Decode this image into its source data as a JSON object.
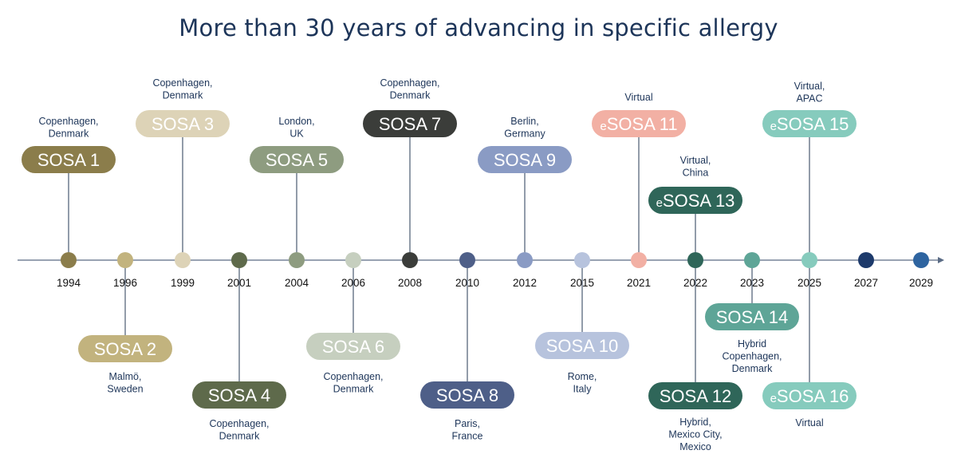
{
  "title": "More than 30 years of advancing in specific allergy",
  "timeline_items": [
    {
      "year": "1994",
      "label": "SOSA 1",
      "prefix": "",
      "location": [
        "Copenhagen,",
        "Denmark"
      ],
      "color": "#8b7d4b",
      "text_color": "#ffffff"
    },
    {
      "year": "1996",
      "label": "SOSA 2",
      "prefix": "",
      "location": [
        "Malmö,",
        "Sweden"
      ],
      "color": "#c2b37e",
      "text_color": "#ffffff"
    },
    {
      "year": "1999",
      "label": "SOSA 3",
      "prefix": "",
      "location": [
        "Copenhagen,",
        "Denmark"
      ],
      "color": "#ddd3b7",
      "text_color": "#ffffff"
    },
    {
      "year": "2001",
      "label": "SOSA 4",
      "prefix": "",
      "location": [
        "Copenhagen,",
        "Denmark"
      ],
      "color": "#5e6a4b",
      "text_color": "#ffffff"
    },
    {
      "year": "2004",
      "label": "SOSA 5",
      "prefix": "",
      "location": [
        "London,",
        "UK"
      ],
      "color": "#8e9c80",
      "text_color": "#ffffff"
    },
    {
      "year": "2006",
      "label": "SOSA 6",
      "prefix": "",
      "location": [
        "Copenhagen,",
        "Denmark"
      ],
      "color": "#c6cfbf",
      "text_color": "#ffffff"
    },
    {
      "year": "2008",
      "label": "SOSA 7",
      "prefix": "",
      "location": [
        "Copenhagen,",
        "Denmark"
      ],
      "color": "#3b3d3a",
      "text_color": "#ffffff"
    },
    {
      "year": "2010",
      "label": "SOSA 8",
      "prefix": "",
      "location": [
        "Paris,",
        "France"
      ],
      "color": "#4e5f88",
      "text_color": "#ffffff"
    },
    {
      "year": "2012",
      "label": "SOSA 9",
      "prefix": "",
      "location": [
        "Berlin,",
        "Germany"
      ],
      "color": "#8a9bc4",
      "text_color": "#ffffff"
    },
    {
      "year": "2015",
      "label": "SOSA 10",
      "prefix": "",
      "location": [
        "Rome,",
        "Italy"
      ],
      "color": "#b7c3dd",
      "text_color": "#ffffff"
    },
    {
      "year": "2021",
      "label": "SOSA 11",
      "prefix": "e",
      "location": [
        "Virtual"
      ],
      "color": "#f2b0a4",
      "text_color": "#ffffff"
    },
    {
      "year": "2022",
      "label": "SOSA 12",
      "prefix": "",
      "location": [
        "Hybrid,",
        "Mexico City,",
        "Mexico"
      ],
      "color": "#2f6659",
      "text_color": "#ffffff"
    },
    {
      "year": "2022",
      "label": "SOSA 13",
      "prefix": "e",
      "location": [
        "Virtual,",
        "China"
      ],
      "color": "#2f6659",
      "text_color": "#ffffff"
    },
    {
      "year": "2023",
      "label": "SOSA 14",
      "prefix": "",
      "location": [
        "Hybrid",
        "Copenhagen,",
        "Denmark"
      ],
      "color": "#5ea597",
      "text_color": "#ffffff"
    },
    {
      "year": "2025",
      "label": "SOSA 15",
      "prefix": "e",
      "location": [
        "Virtual,",
        "APAC"
      ],
      "color": "#86cbbd",
      "text_color": "#ffffff"
    },
    {
      "year": "2025",
      "label": "SOSA 16",
      "prefix": "e",
      "location": [
        "Virtual"
      ],
      "color": "#86cbbd",
      "text_color": "#ffffff"
    }
  ],
  "axis_years": [
    {
      "year": "1994",
      "color": "#8b7d4b"
    },
    {
      "year": "1996",
      "color": "#c2b37e"
    },
    {
      "year": "1999",
      "color": "#ddd3b7"
    },
    {
      "year": "2001",
      "color": "#5e6a4b"
    },
    {
      "year": "2004",
      "color": "#8e9c80"
    },
    {
      "year": "2006",
      "color": "#c6cfbf"
    },
    {
      "year": "2008",
      "color": "#3b3d3a"
    },
    {
      "year": "2010",
      "color": "#4e5f88"
    },
    {
      "year": "2012",
      "color": "#8a9bc4"
    },
    {
      "year": "2015",
      "color": "#b7c3dd"
    },
    {
      "year": "2021",
      "color": "#f2b0a4"
    },
    {
      "year": "2022",
      "color": "#2f6659"
    },
    {
      "year": "2023",
      "color": "#5ea597"
    },
    {
      "year": "2025",
      "color": "#86cbbd"
    },
    {
      "year": "2027",
      "color": "#1d3a6b"
    },
    {
      "year": "2029",
      "color": "#2e64a0"
    }
  ],
  "colors": {
    "axis": "#5a6b85",
    "text": "#1d3559",
    "connector": "#4a5a70"
  }
}
